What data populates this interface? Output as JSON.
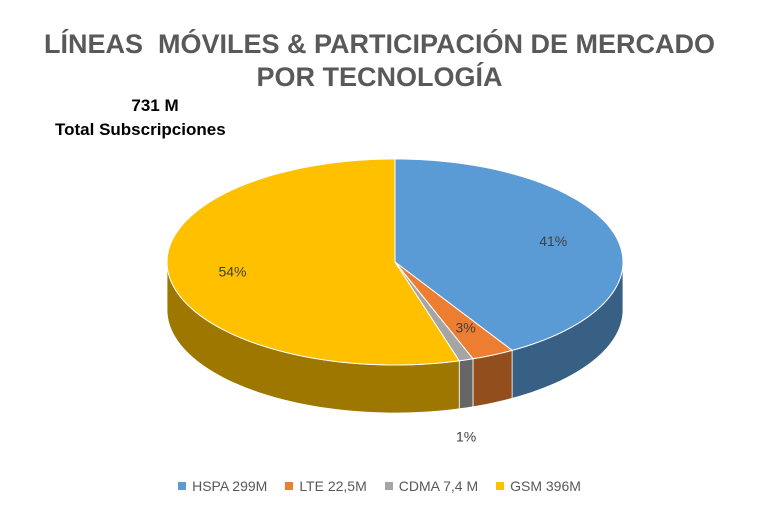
{
  "chart_data": {
    "type": "pie3d",
    "title": [
      "LÍNEAS  MÓVILES & PARTICIPACIÓN DE MERCADO",
      "POR TECNOLOGÍA"
    ],
    "annotations": [
      "731 M",
      "Total Subscripciones"
    ],
    "categories": [
      "HSPA 299M",
      "LTE 22,5M",
      "CDMA 7,4 M",
      "GSM 396M"
    ],
    "values": [
      41,
      3,
      1,
      54
    ],
    "value_labels": [
      "41%",
      "3%",
      "1%",
      "54%"
    ],
    "colors": [
      "#5b9bd5",
      "#ed7d31",
      "#a5a5a5",
      "#ffc000"
    ],
    "legend": "bottom"
  }
}
